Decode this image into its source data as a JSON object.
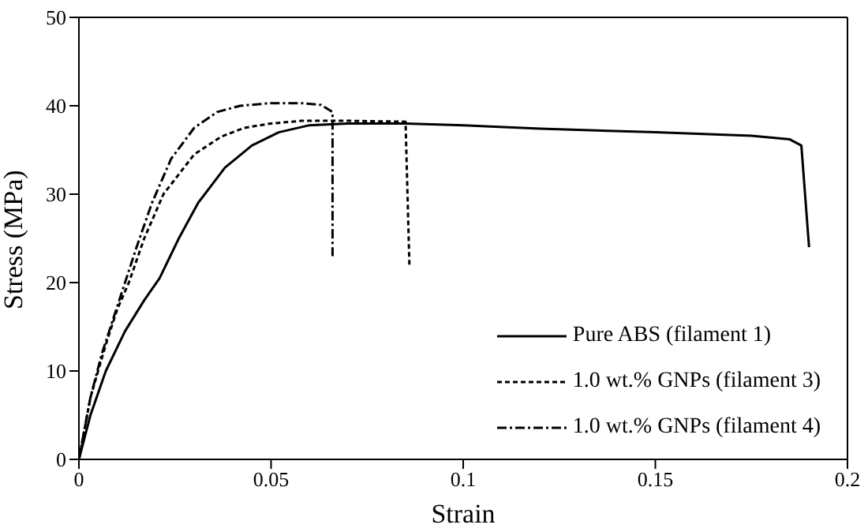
{
  "chart_data": {
    "type": "line",
    "xlabel": "Strain",
    "ylabel": "Stress (MPa)",
    "xlim": [
      0,
      0.2
    ],
    "xticks": [
      0,
      0.05,
      0.1,
      0.15,
      0.2
    ],
    "ylim": [
      0,
      50
    ],
    "yticks": [
      0,
      10,
      20,
      30,
      40,
      50
    ],
    "grid": false,
    "legend": "bottom right",
    "marker": "none",
    "series": [
      {
        "name": "Pure ABS (filament 1)",
        "color": "#000000",
        "line_style": "solid",
        "x": [
          0,
          0.003,
          0.007,
          0.012,
          0.017,
          0.021,
          0.026,
          0.031,
          0.038,
          0.045,
          0.052,
          0.06,
          0.07,
          0.085,
          0.1,
          0.12,
          0.15,
          0.175,
          0.185,
          0.188,
          0.19
        ],
        "values": [
          0,
          5,
          10,
          14.5,
          18,
          20.5,
          25,
          29,
          33,
          35.5,
          37,
          37.8,
          38,
          38,
          37.8,
          37.4,
          37,
          36.6,
          36.2,
          35.5,
          24
        ]
      },
      {
        "name": "1.0 wt.% GNPs (filament 3)",
        "color": "#000000",
        "line_style": "dashed",
        "x": [
          0,
          0.003,
          0.007,
          0.01,
          0.013,
          0.017,
          0.022,
          0.03,
          0.037,
          0.043,
          0.05,
          0.058,
          0.07,
          0.085,
          0.086
        ],
        "values": [
          0,
          7,
          13,
          17,
          20,
          25,
          30,
          34.5,
          36.5,
          37.5,
          38,
          38.3,
          38.3,
          38.2,
          22
        ]
      },
      {
        "name": "1.0 wt.% GNPs (filament 4)",
        "color": "#000000",
        "line_style": "dashdot",
        "x": [
          0,
          0.003,
          0.006,
          0.009,
          0.012,
          0.015,
          0.019,
          0.024,
          0.03,
          0.036,
          0.042,
          0.05,
          0.058,
          0.063,
          0.066,
          0.066
        ],
        "values": [
          0,
          7,
          12,
          16,
          20,
          24,
          29,
          34,
          37.5,
          39.3,
          40,
          40.3,
          40.3,
          40.1,
          39.3,
          23
        ]
      }
    ]
  }
}
